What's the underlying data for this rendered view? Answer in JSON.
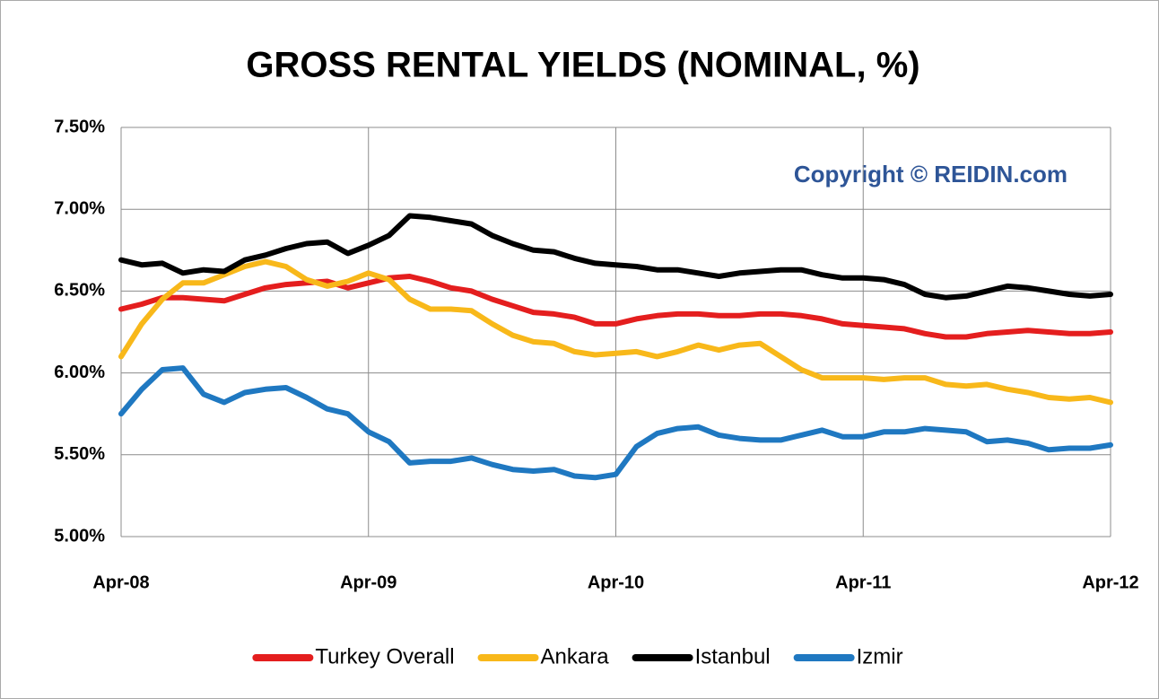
{
  "chart_data": {
    "type": "line",
    "title": "GROSS RENTAL YIELDS (NOMINAL, %)",
    "annotation": "Copyright © REIDIN.com",
    "categories": [
      "Apr-08",
      null,
      null,
      null,
      null,
      null,
      null,
      null,
      null,
      null,
      null,
      null,
      "Apr-09",
      null,
      null,
      null,
      null,
      null,
      null,
      null,
      null,
      null,
      null,
      null,
      "Apr-10",
      null,
      null,
      null,
      null,
      null,
      null,
      null,
      null,
      null,
      null,
      null,
      "Apr-11",
      null,
      null,
      null,
      null,
      null,
      null,
      null,
      null,
      null,
      null,
      null,
      "Apr-12"
    ],
    "ylim": [
      5.0,
      7.5
    ],
    "yticks": [
      {
        "value": 5.0,
        "label": "5.00%"
      },
      {
        "value": 5.5,
        "label": "5.50%"
      },
      {
        "value": 6.0,
        "label": "6.00%"
      },
      {
        "value": 6.5,
        "label": "6.50%"
      },
      {
        "value": 7.0,
        "label": "7.00%"
      },
      {
        "value": 7.5,
        "label": "7.50%"
      }
    ],
    "grid": true,
    "legend": "bottom",
    "series": [
      {
        "name": "Turkey Overall",
        "color": "#e41e1e",
        "values": [
          6.39,
          6.42,
          6.46,
          6.46,
          6.45,
          6.44,
          6.48,
          6.52,
          6.54,
          6.55,
          6.56,
          6.52,
          6.55,
          6.58,
          6.59,
          6.56,
          6.52,
          6.5,
          6.45,
          6.41,
          6.37,
          6.36,
          6.34,
          6.3,
          6.3,
          6.33,
          6.35,
          6.36,
          6.36,
          6.35,
          6.35,
          6.36,
          6.36,
          6.35,
          6.33,
          6.3,
          6.29,
          6.28,
          6.27,
          6.24,
          6.22,
          6.22,
          6.24,
          6.25,
          6.26,
          6.25,
          6.24,
          6.24,
          6.25
        ]
      },
      {
        "name": "Ankara",
        "color": "#f8b81a",
        "values": [
          6.1,
          6.3,
          6.45,
          6.55,
          6.55,
          6.6,
          6.65,
          6.68,
          6.65,
          6.57,
          6.53,
          6.56,
          6.61,
          6.57,
          6.45,
          6.39,
          6.39,
          6.38,
          6.3,
          6.23,
          6.19,
          6.18,
          6.13,
          6.11,
          6.12,
          6.13,
          6.1,
          6.13,
          6.17,
          6.14,
          6.17,
          6.18,
          6.1,
          6.02,
          5.97,
          5.97,
          5.97,
          5.96,
          5.97,
          5.97,
          5.93,
          5.92,
          5.93,
          5.9,
          5.88,
          5.85,
          5.84,
          5.85,
          5.82
        ]
      },
      {
        "name": "Istanbul",
        "color": "#000000",
        "values": [
          6.69,
          6.66,
          6.67,
          6.61,
          6.63,
          6.62,
          6.69,
          6.72,
          6.76,
          6.79,
          6.8,
          6.73,
          6.78,
          6.84,
          6.96,
          6.95,
          6.93,
          6.91,
          6.84,
          6.79,
          6.75,
          6.74,
          6.7,
          6.67,
          6.66,
          6.65,
          6.63,
          6.63,
          6.61,
          6.59,
          6.61,
          6.62,
          6.63,
          6.63,
          6.6,
          6.58,
          6.58,
          6.57,
          6.54,
          6.48,
          6.46,
          6.47,
          6.5,
          6.53,
          6.52,
          6.5,
          6.48,
          6.47,
          6.48
        ]
      },
      {
        "name": "Izmir",
        "color": "#1f78c1",
        "values": [
          5.75,
          5.9,
          6.02,
          6.03,
          5.87,
          5.82,
          5.88,
          5.9,
          5.91,
          5.85,
          5.78,
          5.75,
          5.64,
          5.58,
          5.45,
          5.46,
          5.46,
          5.48,
          5.44,
          5.41,
          5.4,
          5.41,
          5.37,
          5.36,
          5.38,
          5.55,
          5.63,
          5.66,
          5.67,
          5.62,
          5.6,
          5.59,
          5.59,
          5.62,
          5.65,
          5.61,
          5.61,
          5.64,
          5.64,
          5.66,
          5.65,
          5.64,
          5.58,
          5.59,
          5.57,
          5.53,
          5.54,
          5.54,
          5.56
        ]
      }
    ]
  }
}
